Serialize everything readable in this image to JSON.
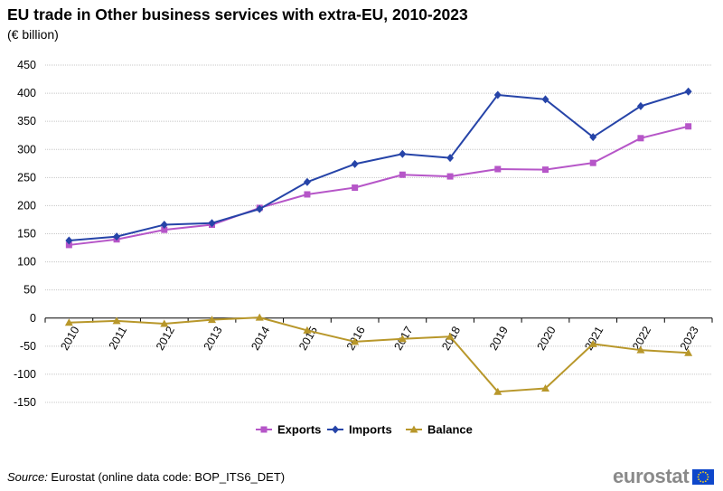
{
  "header": {
    "title": "EU trade in Other business services with extra-EU, 2010-2023",
    "subtitle": "(€ billion)"
  },
  "footer": {
    "source_label": "Source:",
    "source_text": " Eurostat (online data code: BOP_ITS6_DET)",
    "logo_text": "eurostat",
    "flag_color": "#0e47cb",
    "star_color": "#ffd617"
  },
  "chart_data": {
    "type": "line",
    "title": "EU trade in Other business services with extra-EU, 2010-2023",
    "ylabel": "€ billion",
    "xlabel": "",
    "categories": [
      "2010",
      "2011",
      "2012",
      "2013",
      "2014",
      "2015",
      "2016",
      "2017",
      "2018",
      "2019",
      "2020",
      "2021",
      "2022",
      "2023"
    ],
    "ylim": [
      -150,
      450
    ],
    "yticks": [
      -150,
      -100,
      -50,
      0,
      50,
      100,
      150,
      200,
      250,
      300,
      350,
      400,
      450
    ],
    "grid": true,
    "legend_position": "bottom",
    "series": [
      {
        "name": "Exports",
        "color": "#b656c8",
        "marker": "square",
        "values": [
          130,
          140,
          157,
          166,
          196,
          220,
          232,
          255,
          252,
          265,
          264,
          276,
          320,
          341
        ]
      },
      {
        "name": "Imports",
        "color": "#2644a8",
        "marker": "diamond",
        "values": [
          138,
          145,
          166,
          169,
          194,
          242,
          274,
          292,
          285,
          397,
          389,
          322,
          377,
          403
        ]
      },
      {
        "name": "Balance",
        "color": "#b8972a",
        "marker": "triangle",
        "values": [
          -8,
          -5,
          -10,
          -3,
          1,
          -22,
          -42,
          -37,
          -33,
          -131,
          -125,
          -46,
          -57,
          -62
        ]
      }
    ]
  }
}
